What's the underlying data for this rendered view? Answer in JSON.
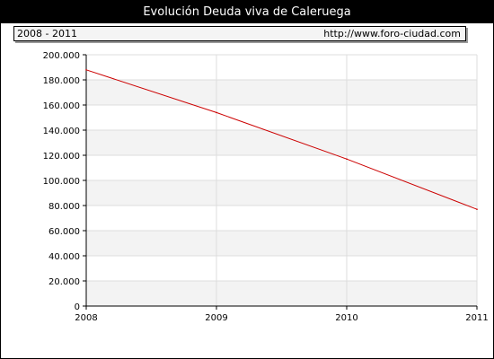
{
  "header": {
    "title": "Evolución Deuda viva de Caleruega",
    "period": "2008 - 2011",
    "url": "http://www.foro-ciudad.com"
  },
  "colors": {
    "line": "#cc0000",
    "band": "#f3f3f3",
    "grid": "#dddddd",
    "axis": "#000000"
  },
  "chart_data": {
    "type": "line",
    "title": "Evolución Deuda viva de Caleruega",
    "xlabel": "",
    "ylabel": "",
    "x": [
      2008,
      2009,
      2010,
      2011
    ],
    "series": [
      {
        "values": [
          188000,
          154000,
          117000,
          77000
        ]
      }
    ],
    "xlim": [
      2008,
      2011
    ],
    "ylim": [
      0,
      200000
    ],
    "x_tick_labels": [
      "2008",
      "2009",
      "2010",
      "2011"
    ],
    "y_ticks": [
      0,
      20000,
      40000,
      60000,
      80000,
      100000,
      120000,
      140000,
      160000,
      180000,
      200000
    ],
    "y_tick_labels": [
      "0",
      "20.000",
      "40.000",
      "60.000",
      "80.000",
      "100.000",
      "120.000",
      "140.000",
      "160.000",
      "180.000",
      "200.000"
    ],
    "grid": true,
    "legend": "none"
  }
}
